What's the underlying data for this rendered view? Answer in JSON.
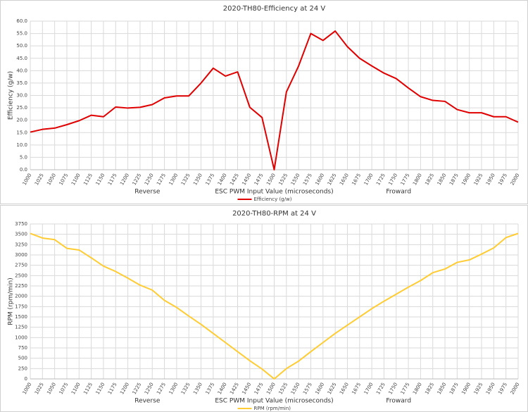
{
  "chart_data": [
    {
      "type": "line",
      "title": "2020-TH80-Efficiency at 24 V",
      "x_label": "ESC PWM Input Value (microseconds)",
      "y_label": "Efficiency  (g/w)",
      "annotations": [
        "Reverse",
        "Froward"
      ],
      "categories": [
        "1000",
        "1025",
        "1050",
        "1075",
        "1100",
        "1125",
        "1150",
        "1175",
        "1200",
        "1225",
        "1250",
        "1275",
        "1300",
        "1325",
        "1350",
        "1375",
        "1400",
        "1425",
        "1450",
        "1475",
        "1500",
        "1525",
        "1550",
        "1575",
        "1600",
        "1625",
        "1650",
        "1675",
        "1700",
        "1725",
        "1750",
        "1775",
        "1800",
        "1825",
        "1850",
        "1875",
        "1900",
        "1925",
        "1950",
        "1975",
        "2000"
      ],
      "series": [
        {
          "name": "Efficiency (g/w)",
          "color": "#e00000",
          "values": [
            15.2,
            16.3,
            16.8,
            18.2,
            19.8,
            22.0,
            21.4,
            25.3,
            24.9,
            25.2,
            26.3,
            29.0,
            29.8,
            29.8,
            35.0,
            41.0,
            37.8,
            39.5,
            25.2,
            21.1,
            0.0,
            31.4,
            41.9,
            55.0,
            52.2,
            56.0,
            49.7,
            45.0,
            41.9,
            39.0,
            36.8,
            33.0,
            29.5,
            28.0,
            27.6,
            24.3,
            23.0,
            23.0,
            21.4,
            21.4,
            19.2
          ]
        }
      ],
      "ylim": [
        0,
        60
      ],
      "yticks": [
        {
          "value": 0,
          "label": "0.0"
        },
        {
          "value": 5,
          "label": "5.0"
        },
        {
          "value": 10,
          "label": "10.0"
        },
        {
          "value": 15,
          "label": "15.0"
        },
        {
          "value": 20,
          "label": "20.0"
        },
        {
          "value": 25,
          "label": "25.0"
        },
        {
          "value": 30,
          "label": "30.0"
        },
        {
          "value": 35,
          "label": "35.0"
        },
        {
          "value": 40,
          "label": "40.0"
        },
        {
          "value": 45,
          "label": "45.0"
        },
        {
          "value": 50,
          "label": "50.0"
        },
        {
          "value": 55,
          "label": "55.0"
        },
        {
          "value": 60,
          "label": "60.0"
        }
      ],
      "grid": true,
      "legend": "bottom"
    },
    {
      "type": "line",
      "title": "2020-TH80-RPM at 24 V",
      "x_label": "ESC PWM Input Value (microseconds)",
      "y_label": "RPM   (rpm/min)",
      "annotations": [
        "Reverse",
        "Froward"
      ],
      "categories": [
        "1000",
        "1025",
        "1050",
        "1075",
        "1100",
        "1125",
        "1150",
        "1175",
        "1200",
        "1225",
        "1250",
        "1275",
        "1300",
        "1325",
        "1350",
        "1375",
        "1400",
        "1425",
        "1450",
        "1475",
        "1500",
        "1525",
        "1550",
        "1575",
        "1600",
        "1625",
        "1650",
        "1675",
        "1700",
        "1725",
        "1750",
        "1775",
        "1800",
        "1825",
        "1850",
        "1875",
        "1900",
        "1925",
        "1950",
        "1975",
        "2000"
      ],
      "series": [
        {
          "name": "RPM (rpm/min)",
          "color": "#ffcc33",
          "values": [
            3520,
            3410,
            3370,
            3160,
            3120,
            2930,
            2730,
            2600,
            2440,
            2270,
            2150,
            1900,
            1730,
            1520,
            1320,
            1100,
            880,
            660,
            440,
            240,
            0,
            250,
            430,
            660,
            880,
            1100,
            1300,
            1500,
            1700,
            1880,
            2050,
            2220,
            2380,
            2570,
            2660,
            2820,
            2880,
            3020,
            3170,
            3420,
            3520
          ]
        }
      ],
      "ylim": [
        0,
        3750
      ],
      "yticks": [
        0,
        250,
        500,
        750,
        1000,
        1250,
        1500,
        1750,
        2000,
        2250,
        2500,
        2750,
        3000,
        3250,
        3500,
        3750
      ],
      "grid": true,
      "legend": "bottom"
    }
  ]
}
